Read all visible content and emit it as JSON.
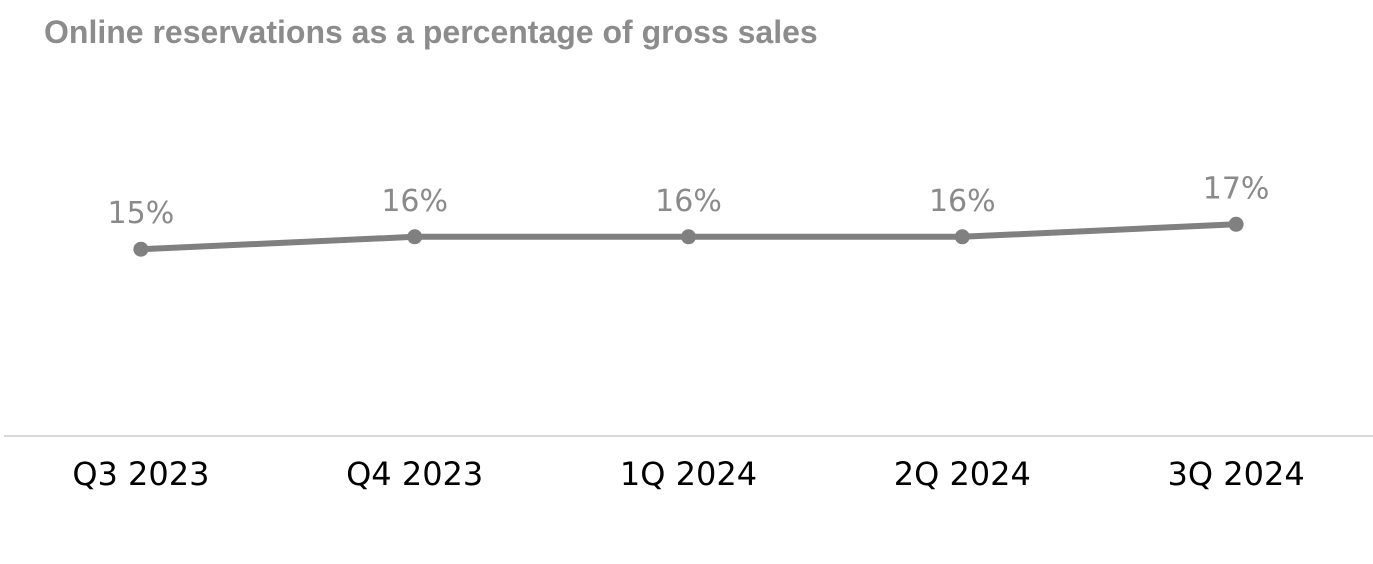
{
  "chart_data": {
    "type": "line",
    "title": "Online reservations as a percentage of gross sales",
    "categories": [
      "Q3 2023",
      "Q4 2023",
      "1Q 2024",
      "2Q 2024",
      "3Q 2024"
    ],
    "series": [
      {
        "values": [
          15,
          16,
          16,
          16,
          17
        ],
        "data_labels": [
          "15%",
          "16%",
          "16%",
          "16%",
          "17%"
        ]
      }
    ],
    "ylim": [
      0,
      31
    ],
    "y_axis_visible": false,
    "grid": false,
    "legend": "none",
    "colors": {
      "line": "#808080",
      "marker": "#808080",
      "data_label": "#8a8a8a",
      "axis_line": "#d9d9d9",
      "tick_label": "#000000",
      "title": "#8c8c8c"
    }
  }
}
